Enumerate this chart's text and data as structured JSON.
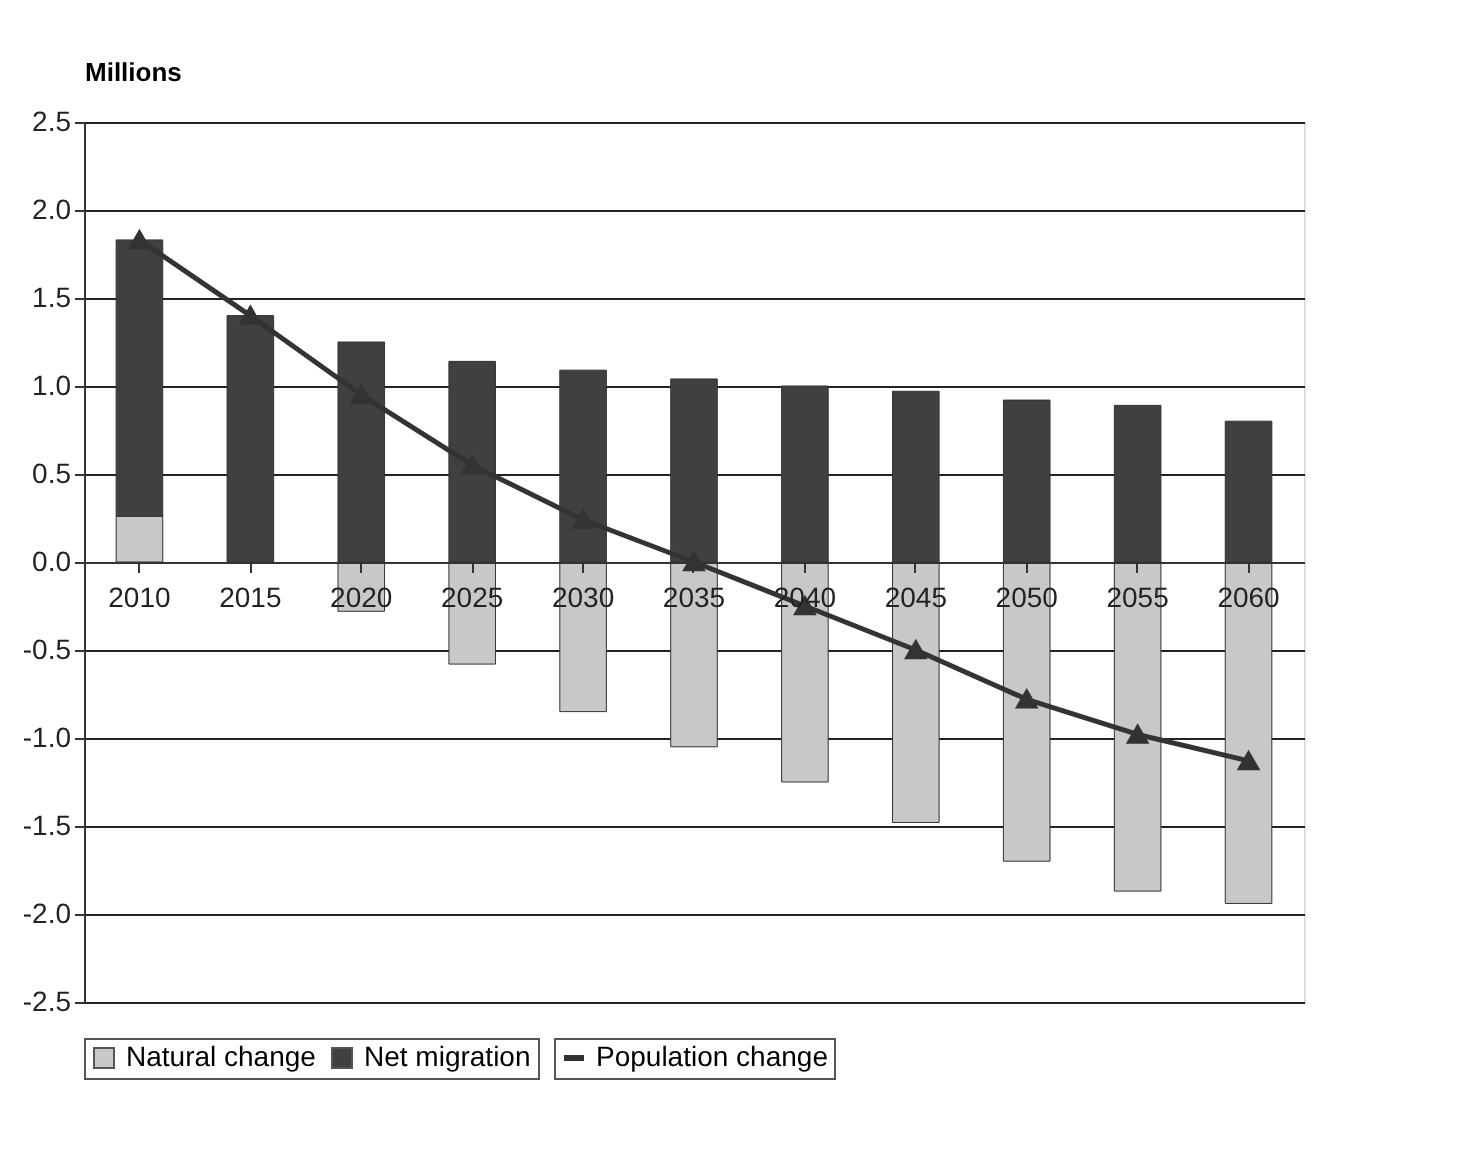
{
  "chart_data": {
    "type": "bar",
    "ylabel": "Millions",
    "stacked": true,
    "categories": [
      "2010",
      "2015",
      "2020",
      "2025",
      "2030",
      "2035",
      "2040",
      "2045",
      "2050",
      "2055",
      "2060"
    ],
    "series": [
      {
        "name": "Natural change",
        "color": "#c8c8c8",
        "values": [
          0.26,
          null,
          -0.28,
          -0.58,
          -0.85,
          -1.05,
          -1.25,
          -1.48,
          -1.7,
          -1.87,
          -1.94
        ]
      },
      {
        "name": "Net migration",
        "color": "#404040",
        "values": [
          1.57,
          1.4,
          1.25,
          1.14,
          1.09,
          1.04,
          1.0,
          0.97,
          0.92,
          0.89,
          0.8
        ]
      },
      {
        "name": "Population change",
        "type": "line",
        "color": "#333333",
        "marker": "triangle",
        "values": [
          1.83,
          1.4,
          0.95,
          0.55,
          0.24,
          0.0,
          -0.25,
          -0.5,
          -0.78,
          -0.98,
          -1.13
        ]
      }
    ],
    "ylim": [
      -2.5,
      2.5
    ],
    "yticks": [
      {
        "value": -2.5,
        "label": "-2.5"
      },
      {
        "value": -2.0,
        "label": "-2.0"
      },
      {
        "value": -1.5,
        "label": "-1.5"
      },
      {
        "value": -1.0,
        "label": "-1.0"
      },
      {
        "value": -0.5,
        "label": "-0.5"
      },
      {
        "value": 0.0,
        "label": "0.0"
      },
      {
        "value": 0.5,
        "label": "0.5"
      },
      {
        "value": 1.0,
        "label": "1.0"
      },
      {
        "value": 1.5,
        "label": "1.5"
      },
      {
        "value": 2.0,
        "label": "2.0"
      },
      {
        "value": 2.5,
        "label": "2.5"
      }
    ],
    "grid": "y",
    "legend": "bottom"
  }
}
